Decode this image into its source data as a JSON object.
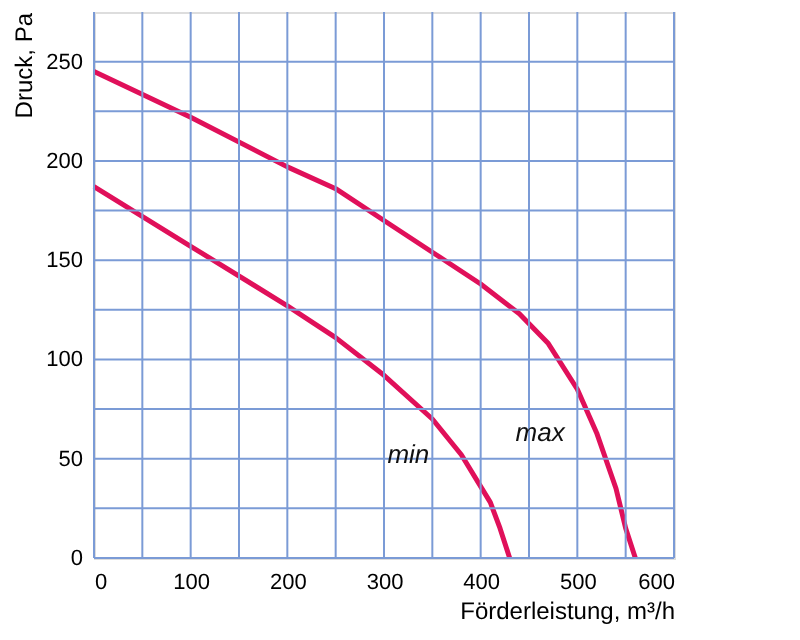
{
  "chart_data": {
    "type": "line",
    "xlabel": "Förderleistung, m³/h",
    "ylabel": "Druck, Pa",
    "series": [
      {
        "name": "max",
        "color": "#e0105a",
        "x": [
          0,
          100,
          200,
          250,
          300,
          350,
          400,
          440,
          470,
          500,
          520,
          540,
          550,
          560
        ],
        "values": [
          245,
          222,
          197,
          186,
          170,
          154,
          138,
          123,
          108,
          85,
          63,
          35,
          15,
          0
        ]
      },
      {
        "name": "min",
        "color": "#e0105a",
        "x": [
          0,
          100,
          200,
          250,
          300,
          350,
          380,
          410,
          420,
          430
        ],
        "values": [
          187,
          157,
          127,
          111,
          92,
          70,
          52,
          28,
          15,
          0
        ]
      }
    ],
    "xlim": [
      0,
      600
    ],
    "ylim": [
      0,
      275
    ],
    "xticks": [
      0,
      {
        "value": 50,
        "label": null
      },
      100,
      {
        "value": 150,
        "label": null
      },
      200,
      {
        "value": 250,
        "label": null
      },
      300,
      {
        "value": 350,
        "label": null
      },
      400,
      {
        "value": 450,
        "label": null
      },
      500,
      {
        "value": 550,
        "label": null
      },
      600
    ],
    "yticks": [
      0,
      {
        "value": 25,
        "label": null
      },
      50,
      {
        "value": 75,
        "label": null
      },
      100,
      {
        "value": 125,
        "label": null
      },
      150,
      {
        "value": 175,
        "label": null
      },
      200,
      {
        "value": 225,
        "label": null
      },
      250
    ],
    "grid": true,
    "legend": false,
    "marker": "none",
    "line_style": "solid"
  }
}
